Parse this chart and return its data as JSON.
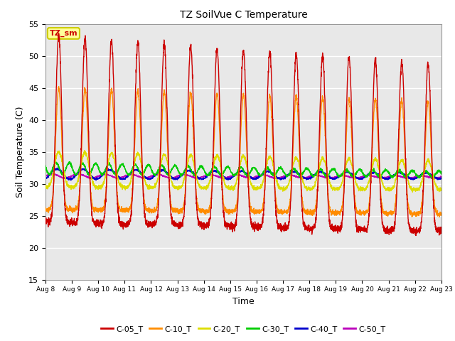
{
  "title": "TZ SoilVue C Temperature",
  "xlabel": "Time",
  "ylabel": "Soil Temperature (C)",
  "ylim": [
    15,
    55
  ],
  "background_color": "#e8e8e8",
  "series_names": [
    "C-05_T",
    "C-10_T",
    "C-20_T",
    "C-30_T",
    "C-40_T",
    "C-50_T"
  ],
  "series_colors": [
    "#cc0000",
    "#ff8c00",
    "#dddd00",
    "#00cc00",
    "#0000cc",
    "#bb00bb"
  ],
  "xtick_labels": [
    "Aug 8",
    "Aug 9",
    "Aug 10",
    "Aug 11",
    "Aug 12",
    "Aug 13",
    "Aug 14",
    "Aug 15",
    "Aug 16",
    "Aug 17",
    "Aug 18",
    "Aug 19",
    "Aug 20",
    "Aug 21",
    "Aug 22",
    "Aug 23"
  ],
  "ytick_values": [
    15,
    20,
    25,
    30,
    35,
    40,
    45,
    50,
    55
  ],
  "legend_label_box": "TZ_sm",
  "legend_box_facecolor": "#ffff99",
  "legend_box_edgecolor": "#cccc00"
}
